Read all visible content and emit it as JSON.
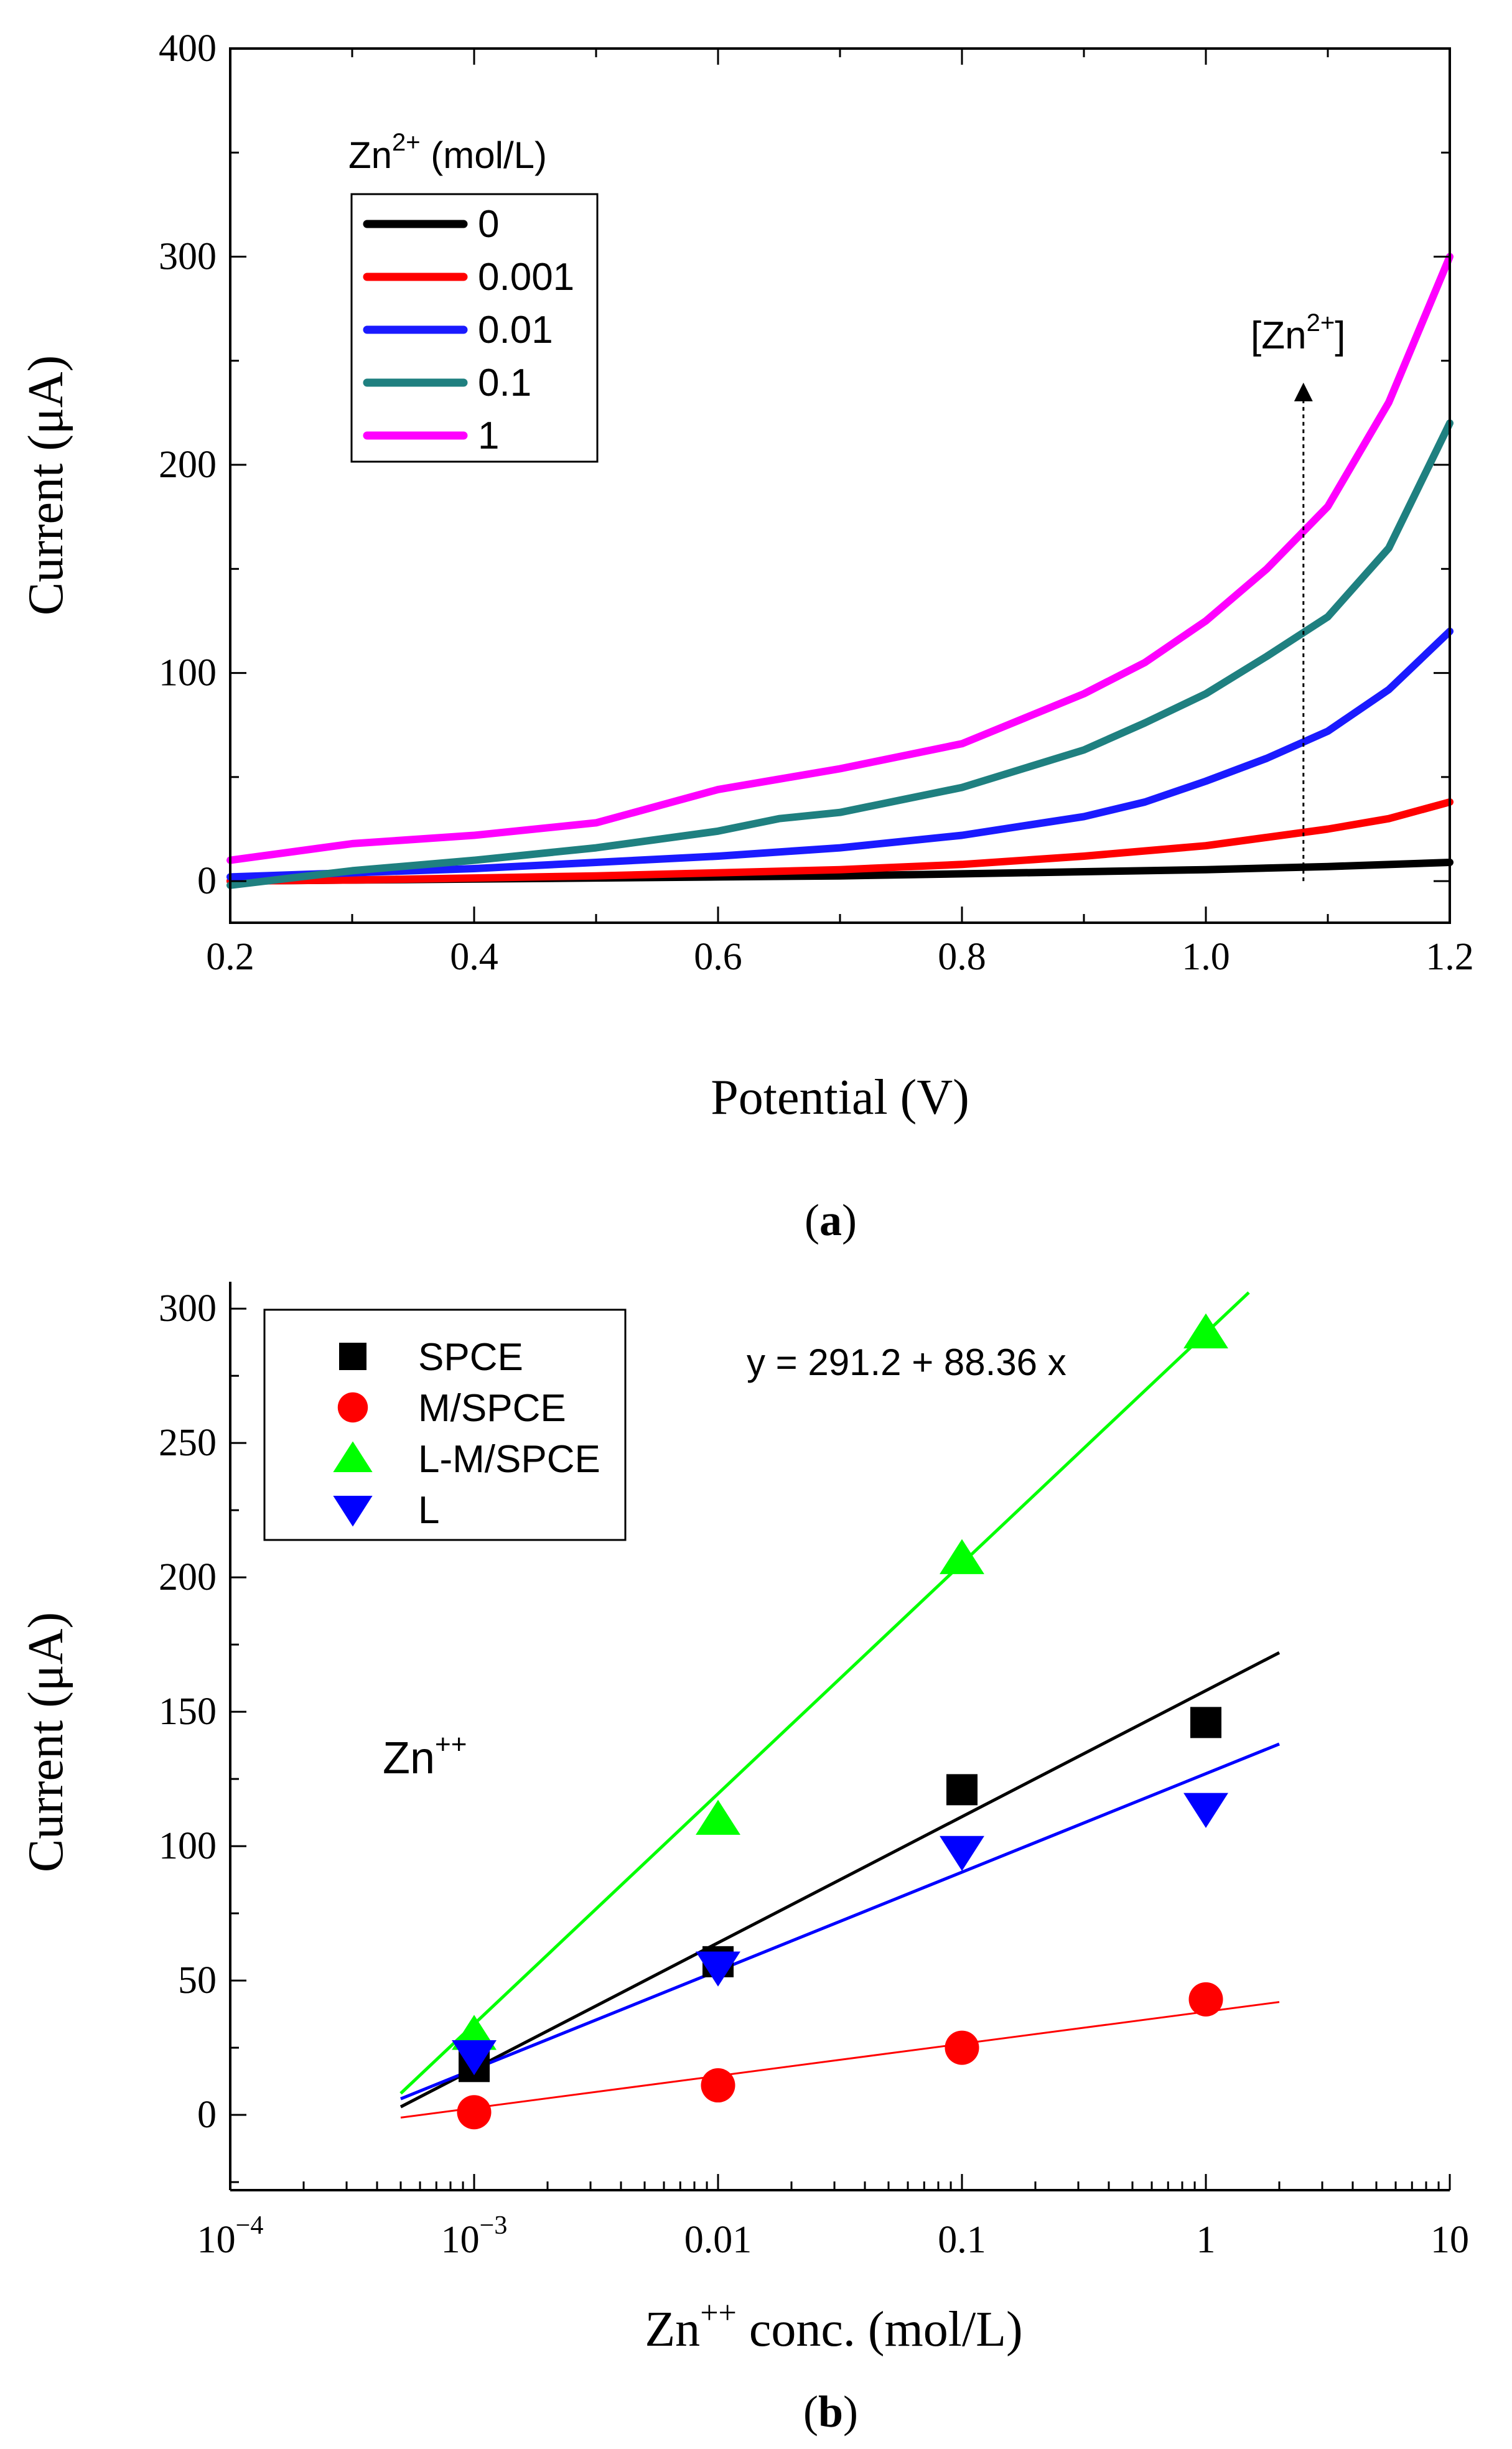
{
  "chart_data": [
    {
      "id": "a",
      "type": "line",
      "caption_open": "(",
      "caption_letter": "a",
      "caption_close": ")",
      "xlabel": "Potential (V)",
      "ylabel": "Current (μA)",
      "xlim": [
        0.2,
        1.2
      ],
      "ylim": [
        -20,
        400
      ],
      "x_ticks": [
        0.2,
        0.4,
        0.6,
        0.8,
        1.0,
        1.2
      ],
      "x_tick_labels": [
        "0.2",
        "0.4",
        "0.6",
        "0.8",
        "1.0",
        "1.2"
      ],
      "y_ticks": [
        0,
        100,
        200,
        300,
        400
      ],
      "y_tick_labels": [
        "0",
        "100",
        "200",
        "300",
        "400"
      ],
      "legend_title_base": "Zn",
      "legend_title_sup": "2+",
      "legend_title_unit": " (mol/L)",
      "legend_position": "top-left",
      "annotation_base": "[Zn",
      "annotation_sup": "2+",
      "annotation_close": "]",
      "annotation_arrow_x": 1.08,
      "annotation_arrow_from": 0,
      "annotation_arrow_to": 235,
      "series": [
        {
          "name": "0",
          "color": "#000000",
          "x": [
            0.2,
            0.3,
            0.4,
            0.5,
            0.6,
            0.7,
            0.8,
            0.9,
            1.0,
            1.1,
            1.2
          ],
          "y": [
            0,
            0.5,
            1,
            1.5,
            2,
            2.5,
            3.5,
            4.5,
            5.5,
            7,
            9
          ]
        },
        {
          "name": "0.001",
          "color": "#ff0000",
          "x": [
            0.2,
            0.3,
            0.4,
            0.5,
            0.6,
            0.7,
            0.8,
            0.9,
            1.0,
            1.05,
            1.1,
            1.15,
            1.2
          ],
          "y": [
            0,
            0.5,
            1.5,
            2.5,
            4,
            5.5,
            8,
            12,
            17,
            21,
            25,
            30,
            38
          ]
        },
        {
          "name": "0.01",
          "color": "#1a1aff",
          "x": [
            0.2,
            0.3,
            0.4,
            0.5,
            0.6,
            0.7,
            0.8,
            0.9,
            0.95,
            1.0,
            1.05,
            1.1,
            1.15,
            1.2
          ],
          "y": [
            2,
            4,
            6,
            9,
            12,
            16,
            22,
            31,
            38,
            48,
            59,
            72,
            92,
            120
          ]
        },
        {
          "name": "0.1",
          "color": "#1f8080",
          "x": [
            0.2,
            0.3,
            0.4,
            0.5,
            0.6,
            0.65,
            0.7,
            0.8,
            0.9,
            0.95,
            1.0,
            1.05,
            1.1,
            1.15,
            1.2
          ],
          "y": [
            -2,
            5,
            10,
            16,
            24,
            30,
            33,
            45,
            63,
            76,
            90,
            108,
            127,
            160,
            220
          ]
        },
        {
          "name": "1",
          "color": "#ff00ff",
          "x": [
            0.2,
            0.3,
            0.4,
            0.5,
            0.55,
            0.6,
            0.65,
            0.7,
            0.8,
            0.9,
            0.95,
            1.0,
            1.05,
            1.1,
            1.15,
            1.2
          ],
          "y": [
            10,
            18,
            22,
            28,
            36,
            44,
            49,
            54,
            66,
            90,
            105,
            125,
            150,
            180,
            230,
            300
          ]
        }
      ]
    },
    {
      "id": "b",
      "type": "scatter",
      "caption_open": "(",
      "caption_letter": "b",
      "caption_close": ")",
      "xlabel_base": "Zn",
      "xlabel_sup": "++",
      "xlabel_rest": " conc. (mol/L)",
      "ylabel": "Current (μA)",
      "x_scale": "log",
      "xlim": [
        0.0001,
        10
      ],
      "ylim": [
        -28,
        310
      ],
      "x_ticks": [
        0.0001,
        0.001,
        0.01,
        0.1,
        1,
        10
      ],
      "x_tick_labels": [
        {
          "base": "10",
          "sup": "−4"
        },
        {
          "base": "10",
          "sup": "−3"
        },
        {
          "base": "0.01",
          "sup": ""
        },
        {
          "base": "0.1",
          "sup": ""
        },
        {
          "base": "1",
          "sup": ""
        },
        {
          "base": "10",
          "sup": ""
        }
      ],
      "y_ticks": [
        0,
        50,
        100,
        150,
        200,
        250,
        300
      ],
      "y_tick_labels": [
        "0",
        "50",
        "100",
        "150",
        "200",
        "250",
        "300"
      ],
      "legend_position": "top-left",
      "annotation_equation": "y = 291.2 + 88.36 x",
      "annotation_ion_base": "Zn",
      "annotation_ion_sup": "++",
      "series": [
        {
          "name": "SPCE",
          "marker": "square",
          "color": "#000000",
          "x": [
            0.001,
            0.01,
            0.1,
            1
          ],
          "y": [
            18,
            57,
            121,
            146
          ],
          "fit": {
            "x": [
              0.0005,
              2
            ],
            "y": [
              3,
              172
            ]
          }
        },
        {
          "name": "M/SPCE",
          "marker": "circle",
          "color": "#ff0000",
          "x": [
            0.001,
            0.01,
            0.1,
            1
          ],
          "y": [
            1,
            11,
            25,
            43
          ],
          "fit": {
            "x": [
              0.0005,
              2
            ],
            "y": [
              -1,
              42
            ]
          }
        },
        {
          "name": "L-M/SPCE",
          "marker": "triangle-up",
          "color": "#00ff00",
          "x": [
            0.001,
            0.01,
            0.1,
            1
          ],
          "y": [
            30,
            110,
            207,
            291
          ],
          "fit": {
            "x": [
              0.0005,
              1.5
            ],
            "y": [
              8,
              306
            ]
          }
        },
        {
          "name": "L",
          "marker": "triangle-down",
          "color": "#0000ff",
          "x": [
            0.001,
            0.01,
            0.1,
            1
          ],
          "y": [
            22,
            55,
            98,
            114
          ],
          "fit": {
            "x": [
              0.0005,
              2
            ],
            "y": [
              6,
              138
            ]
          }
        }
      ]
    }
  ]
}
